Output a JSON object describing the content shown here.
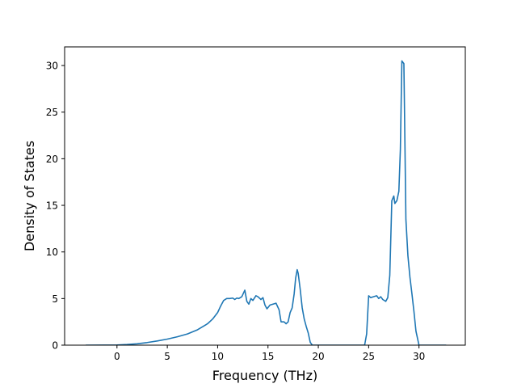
{
  "chart_data": {
    "type": "line",
    "title": "",
    "xlabel": "Frequency (THz)",
    "ylabel": "Density of States",
    "xlim": [
      -5.2,
      34.6
    ],
    "ylim": [
      0,
      32
    ],
    "xticks": [
      0,
      5,
      10,
      15,
      20,
      25,
      30
    ],
    "yticks": [
      0,
      5,
      10,
      15,
      20,
      25,
      30
    ],
    "grid": false,
    "line_color": "#1f77b4",
    "series": [
      {
        "x": [
          -3.1,
          0.0,
          1.0,
          2.0,
          3.0,
          4.0,
          5.0,
          6.0,
          7.0,
          8.0,
          9.0,
          9.5,
          10.0,
          10.3,
          10.6,
          10.9,
          11.2,
          11.5,
          11.7,
          11.9,
          12.1,
          12.4,
          12.7,
          12.9,
          13.1,
          13.3,
          13.5,
          13.8,
          14.0,
          14.3,
          14.5,
          14.7,
          14.9,
          15.2,
          15.5,
          15.8,
          16.1,
          16.3,
          16.6,
          16.8,
          17.0,
          17.2,
          17.4,
          17.6,
          17.75,
          17.9,
          18.0,
          18.2,
          18.4,
          18.6,
          18.8,
          19.0,
          19.2,
          19.4,
          19.7,
          24.6,
          24.8,
          25.0,
          25.2,
          25.5,
          25.8,
          26.0,
          26.2,
          26.4,
          26.7,
          26.9,
          27.1,
          27.3,
          27.5,
          27.6,
          27.8,
          28.0,
          28.15,
          28.3,
          28.5,
          28.7,
          28.9,
          29.1,
          29.3,
          29.5,
          29.7,
          30.0,
          32.7
        ],
        "y": [
          0.0,
          0.02,
          0.07,
          0.15,
          0.28,
          0.45,
          0.65,
          0.9,
          1.2,
          1.65,
          2.3,
          2.8,
          3.5,
          4.2,
          4.8,
          5.0,
          5.0,
          5.05,
          4.9,
          5.05,
          5.0,
          5.2,
          5.9,
          4.7,
          4.4,
          5.0,
          4.8,
          5.3,
          5.2,
          4.9,
          5.1,
          4.3,
          3.9,
          4.3,
          4.4,
          4.5,
          3.8,
          2.5,
          2.5,
          2.3,
          2.5,
          3.5,
          4.0,
          5.5,
          7.2,
          8.1,
          7.7,
          6.0,
          4.0,
          2.8,
          2.0,
          1.3,
          0.3,
          0.0,
          0.0,
          0.0,
          1.2,
          5.3,
          5.1,
          5.2,
          5.3,
          5.0,
          5.2,
          4.9,
          4.7,
          5.1,
          7.5,
          15.5,
          16.0,
          15.2,
          15.5,
          16.5,
          21.0,
          30.5,
          30.2,
          13.5,
          9.6,
          7.3,
          5.5,
          3.6,
          1.5,
          0.0,
          0.0
        ]
      }
    ]
  }
}
